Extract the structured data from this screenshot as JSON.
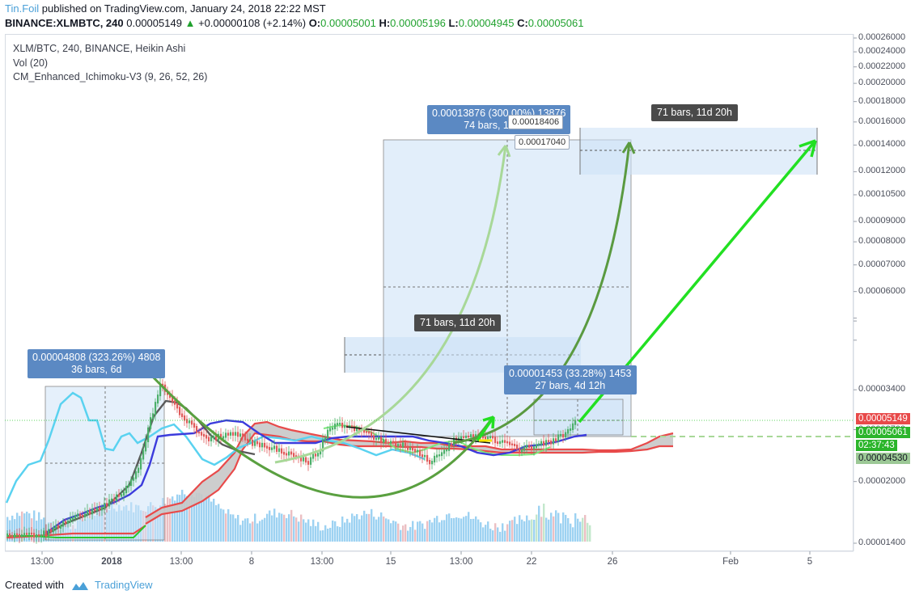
{
  "header": {
    "author": "Tin.Foil",
    "published_text": " published on TradingView.com, January 24, 2018 22:22 MST",
    "symbol": "BINANCE:XLMBTC, 240",
    "last": "0.00005149",
    "change": "+0.00000108 (+2.14%)",
    "open_label": "O:",
    "open": "0.00005001",
    "high_label": "H:",
    "high": "0.00005196",
    "low_label": "L:",
    "low": "0.00004945",
    "close_label": "C:",
    "close": "0.00005061"
  },
  "legend": {
    "main": "XLM/BTC, 240, BINANCE, Heikin Ashi",
    "vol": "Vol (20)",
    "ichimoku": "CM_Enhanced_Ichimoku-V3 (9, 26, 52, 26)"
  },
  "annotations": {
    "left_measure_line1": "0.00004808 (323.26%) 4808",
    "left_measure_line2": "36 bars, 6d",
    "mid_bars": "71 bars, 11d 20h",
    "top_measure_line1": "0.00013876 (300.00%) 13876",
    "top_measure_line2": "74 bars, 12d 8h",
    "right_bars": "71 bars, 11d 20h",
    "small_measure_line1": "0.00001453 (33.28%) 1453",
    "small_measure_line2": "27 bars, 4d 12h",
    "callout_a": "0.00018406",
    "callout_b": "0.00017040"
  },
  "price_tags": {
    "last": "0.00005149",
    "close": "0.00005061",
    "countdown": "02:37:43",
    "cloud": "0.00004530"
  },
  "footer": {
    "created_with": "Created with",
    "brand": "TradingView"
  },
  "colors": {
    "up": "#1fa12d",
    "tenkan": "#3b3bdc",
    "kijun": "#e84a4a",
    "chikou": "#5ad2f0",
    "cloud_fill": "#c8c8c8",
    "arrow_bright": "#22e022",
    "curve": "#5aa040",
    "volume": "#8ccaf0"
  },
  "chart_data": {
    "type": "candlestick",
    "title": "XLM/BTC, 240, BINANCE, Heikin Ashi",
    "y_scale": "log",
    "yticks": [
      "0.00026000",
      "0.00024000",
      "0.00022000",
      "0.00020000",
      "0.00018000",
      "0.00016000",
      "0.00014000",
      "0.00012000",
      "0.00010500",
      "0.00009000",
      "0.00008000",
      "0.00007000",
      "0.00006000",
      "0.00005149",
      "0.00005061",
      "0.00004530",
      "0.00003400",
      "0.00002700",
      "0.00002000",
      "0.00001400"
    ],
    "ytick_values": [
      0.00026,
      0.00024,
      0.00022,
      0.0002,
      0.00018,
      0.00016,
      0.00014,
      0.00012,
      0.000105,
      9e-05,
      8e-05,
      7e-05,
      6e-05,
      5.149e-05,
      5.061e-05,
      4.53e-05,
      3.4e-05,
      2.7e-05,
      2e-05,
      1.4e-05
    ],
    "xticks": [
      "13:00",
      "2018",
      "13:00",
      "8",
      "13:00",
      "15",
      "13:00",
      "22",
      "26",
      "Feb",
      "5"
    ],
    "legend": [
      "Vol (20)",
      "CM_Enhanced_Ichimoku-V3 (9, 26, 52, 26)"
    ],
    "last_price": 5.149e-05,
    "close": 5.061e-05,
    "high": 5.196e-05,
    "low": 4.945e-05,
    "open": 5.001e-05
  }
}
